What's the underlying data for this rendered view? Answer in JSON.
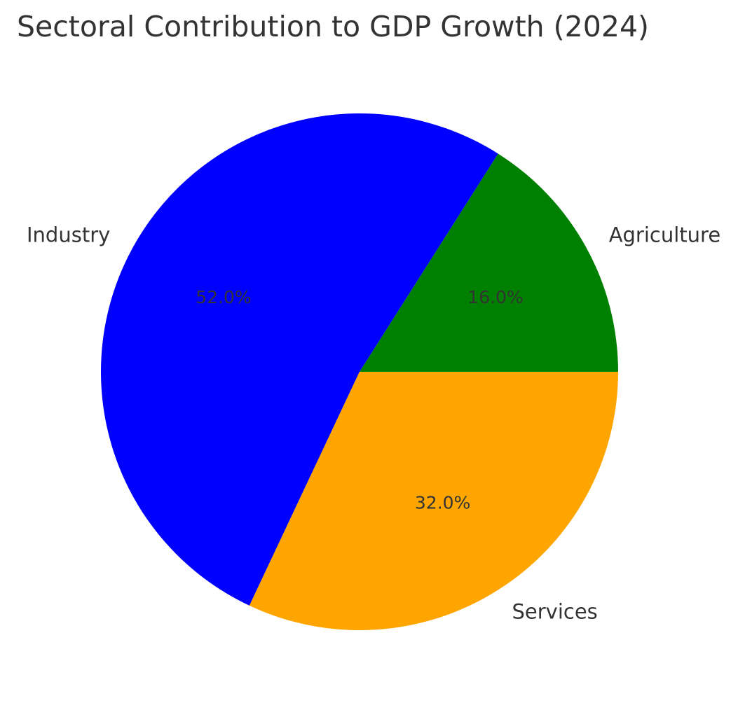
{
  "chart_data": {
    "type": "pie",
    "title": "Sectoral Contribution to GDP Growth (2024)",
    "categories": [
      "Agriculture",
      "Industry",
      "Services"
    ],
    "values": [
      16.0,
      52.0,
      32.0
    ],
    "percent_labels": [
      "16.0%",
      "52.0%",
      "32.0%"
    ],
    "colors": [
      "#008000",
      "#0000ff",
      "#ffa500"
    ],
    "start_angle_deg": 0,
    "direction": "counterclockwise",
    "legend": "none"
  }
}
